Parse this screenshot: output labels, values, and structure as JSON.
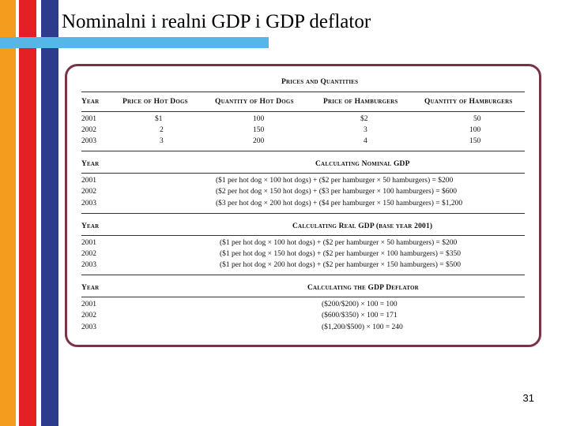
{
  "slide_title": "Nominalni i realni GDP i GDP deflator",
  "page_number": "31",
  "colors": {
    "orange": "#f39c1e",
    "red": "#e41f26",
    "navy": "#2e3a8c",
    "underline_blue": "#57b6e8",
    "frame": "#7a3344"
  },
  "table": {
    "prices_and_quantities": {
      "section_title": "Prices and Quantities",
      "headers": [
        "Year",
        "Price of Hot Dogs",
        "Quantity of Hot Dogs",
        "Price of Hamburgers",
        "Quantity of Hamburgers"
      ],
      "rows": [
        [
          "2001",
          "$1",
          "100",
          "$2",
          "50"
        ],
        [
          "2002",
          "2",
          "150",
          "3",
          "100"
        ],
        [
          "2003",
          "3",
          "200",
          "4",
          "150"
        ]
      ]
    },
    "nominal_gdp": {
      "year_header": "Year",
      "section_title": "Calculating Nominal GDP",
      "rows": [
        [
          "2001",
          "($1 per hot dog × 100 hot dogs) + ($2 per hamburger × 50 hamburgers) = $200"
        ],
        [
          "2002",
          "($2 per hot dog × 150 hot dogs) + ($3 per hamburger × 100 hamburgers) = $600"
        ],
        [
          "2003",
          "($3 per hot dog × 200 hot dogs) + ($4 per hamburger × 150 hamburgers) = $1,200"
        ]
      ]
    },
    "real_gdp": {
      "year_header": "Year",
      "section_title": "Calculating Real GDP (base year 2001)",
      "rows": [
        [
          "2001",
          "($1 per hot dog × 100 hot dogs) + ($2 per hamburger × 50 hamburgers) = $200"
        ],
        [
          "2002",
          "($1 per hot dog × 150 hot dogs) + ($2 per hamburger × 100 hamburgers) = $350"
        ],
        [
          "2003",
          "($1 per hot dog × 200 hot dogs) + ($2 per hamburger × 150 hamburgers) = $500"
        ]
      ]
    },
    "gdp_deflator": {
      "year_header": "Year",
      "section_title": "Calculating the GDP Deflator",
      "rows": [
        [
          "2001",
          "($200/$200) × 100 = 100"
        ],
        [
          "2002",
          "($600/$350) × 100 = 171"
        ],
        [
          "2003",
          "($1,200/$500) × 100 = 240"
        ]
      ]
    }
  }
}
